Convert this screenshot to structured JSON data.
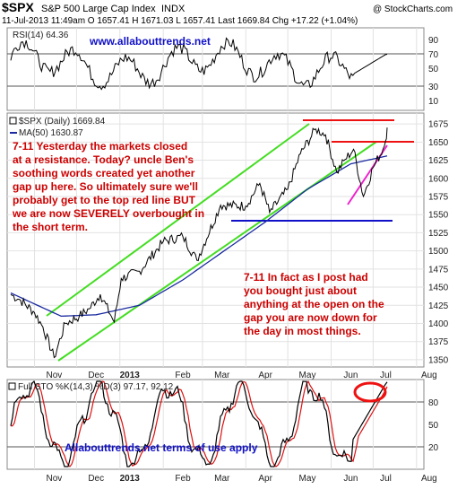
{
  "header": {
    "symbol": "$SPX",
    "name": "S&P 500 Large Cap Index",
    "exchange": "INDX",
    "copyright": "@ StockCharts.com",
    "quote": "11-Jul-2013 11:49am  O 1657.41  H 1671.03  L 1657.41  Last 1669.84  Chg +17.22 (+1.04%)"
  },
  "panels": {
    "rsi": {
      "label": "RSI(14) 64.36",
      "watermark": "www.allabouttrends.net",
      "ticks": [
        "90",
        "70",
        "50",
        "30",
        "10"
      ]
    },
    "price": {
      "label": "$SPX (Daily) 1669.84",
      "ma_label": "MA(50) 1630.87",
      "ticks": [
        "1675",
        "1650",
        "1625",
        "1600",
        "1575",
        "1550",
        "1525",
        "1500",
        "1475",
        "1450",
        "1425",
        "1400",
        "1375",
        "1350"
      ],
      "annotation_left": [
        "7-11 Yesterday the markets closed",
        "at a resistance. Today? uncle Ben's",
        "soothing words created yet another",
        "gap up here. So ultimately sure we'll",
        "probably get to the top red line BUT",
        "we are now SEVERELY overbought in",
        "the short term."
      ],
      "annotation_right": [
        "7-11 In fact as I post had",
        "you bought just about",
        "anything at the open on the",
        "gap you are now down for",
        "the day in most things."
      ]
    },
    "sto": {
      "label": "Full STO %K(14,3) %D(3) 97.17, 92.12",
      "footer": "Allabouttrends.net terms of use apply",
      "ticks": [
        "80",
        "50",
        "20"
      ]
    }
  },
  "x_axis": [
    "Nov",
    "Dec",
    "2013",
    "Feb",
    "Mar",
    "Apr",
    "May",
    "Jun",
    "Jul",
    "Aug"
  ],
  "colors": {
    "price": "#000000",
    "ma": "#1a2aa0",
    "channel": "#44dd22",
    "resistance": "#ee1111",
    "support": "#1010c8",
    "trend": "#ee22cc",
    "sto_k": "#000000",
    "sto_d": "#dd1111"
  },
  "chart_data": {
    "type": "line",
    "title": "$SPX S&P 500 Large Cap Index INDX",
    "date_range": [
      "2012-10-15",
      "2013-07-11"
    ],
    "series": [
      {
        "name": "$SPX (Daily)",
        "x": [
          "2012-10-15",
          "2012-10-22",
          "2012-11-01",
          "2012-11-07",
          "2012-11-15",
          "2012-11-23",
          "2012-12-03",
          "2012-12-10",
          "2012-12-18",
          "2012-12-28",
          "2013-01-02",
          "2013-01-15",
          "2013-02-01",
          "2013-02-15",
          "2013-02-25",
          "2013-03-14",
          "2013-04-01",
          "2013-04-11",
          "2013-04-18",
          "2013-05-01",
          "2013-05-10",
          "2013-05-21",
          "2013-05-28",
          "2013-06-05",
          "2013-06-11",
          "2013-06-17",
          "2013-06-24",
          "2013-07-01",
          "2013-07-08",
          "2013-07-10",
          "2013-07-11"
        ],
        "values": [
          1440,
          1432,
          1415,
          1395,
          1353,
          1400,
          1410,
          1420,
          1440,
          1402,
          1462,
          1472,
          1513,
          1520,
          1487,
          1563,
          1562,
          1593,
          1553,
          1585,
          1634,
          1668,
          1660,
          1608,
          1626,
          1640,
          1575,
          1615,
          1640,
          1652,
          1670
        ]
      },
      {
        "name": "MA(50)",
        "x": [
          "2012-10-15",
          "2012-11-20",
          "2012-12-15",
          "2013-01-15",
          "2013-02-15",
          "2013-03-15",
          "2013-04-15",
          "2013-05-15",
          "2013-06-15",
          "2013-07-11"
        ],
        "values": [
          1442,
          1410,
          1412,
          1425,
          1460,
          1498,
          1540,
          1585,
          1620,
          1631
        ]
      }
    ],
    "rsi": {
      "label": "RSI(14)",
      "last": 64.36,
      "levels": [
        70,
        30
      ],
      "ylim": [
        10,
        90
      ]
    },
    "full_sto": {
      "k_last": 97.17,
      "d_last": 92.12,
      "levels": [
        80,
        20
      ],
      "ylim": [
        0,
        100
      ]
    },
    "ylim": [
      1340,
      1690
    ]
  }
}
